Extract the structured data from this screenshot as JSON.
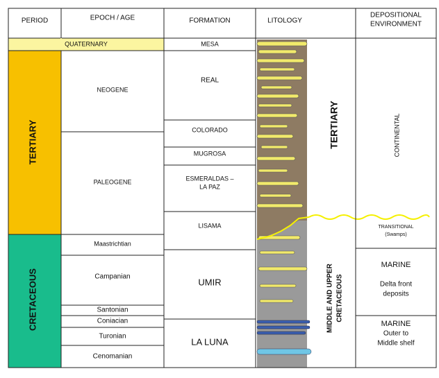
{
  "header": [
    "PERIOD",
    "EPOCH / AGE",
    "FORMATION",
    "LITOLOGY",
    [
      "DEPOSITIONAL",
      "ENVIRONMENT"
    ]
  ],
  "periods": {
    "quaternary": "QUATERNARY",
    "tertiary": "TERTIARY",
    "cretaceous": "CRETACEOUS"
  },
  "epochs": [
    "NEOGENE",
    "PALEOGENE",
    "Maastrichtian",
    "Campanian",
    "Santonian",
    "Coniacian",
    "Turonian",
    "Cenomanian"
  ],
  "formations": [
    "MESA",
    "REAL",
    "COLORADO",
    "MUGROSA",
    [
      "ESMERALDAS –",
      "LA PAZ"
    ],
    "LISAMA",
    "UMIR",
    "LA LUNA"
  ],
  "litology": [
    "TERTIARY",
    [
      "MIDDLE AND UPPER",
      "CRETACEOUS"
    ]
  ],
  "environments": [
    "CONTINENTAL",
    [
      "TRANSITIONAL",
      "(Swamps)"
    ],
    [
      "MARINE",
      "Delta front",
      "deposits"
    ],
    [
      "MARINE",
      "Outer to",
      "Middle shelf"
    ]
  ]
}
